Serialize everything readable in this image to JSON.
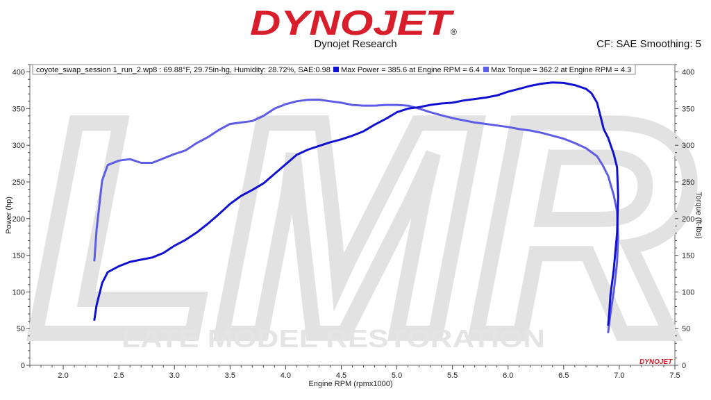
{
  "header": {
    "logo_text": "DYNOJET",
    "logo_mark": "®",
    "company": "Dynojet Research",
    "cf_info": "CF: SAE Smoothing: 5",
    "watermark_text": "LATE MODEL RESTORATION",
    "watermark_monogram": "LMR",
    "corner_logo": "DYNOJET"
  },
  "colors": {
    "logo_red": "#d81e2a",
    "power": "#1010d0",
    "torque": "#5c5ce6",
    "watermark": "#e4e4e4"
  },
  "chart_data": {
    "type": "line",
    "legend": {
      "placement": "top",
      "run_info": "coyote_swap_session 1_run_2.wp8  : 69.88°F, 29.75in-hg, Humidity: 28.72%, SAE:0.98",
      "entries": [
        "Max Power = 385.6 at Engine RPM = 6.4",
        "Max Torque = 362.2 at Engine RPM = 4.3"
      ]
    },
    "xlabel": "Engine RPM (rpmx1000)",
    "ylabel_left": "Power (hp)",
    "ylabel_right": "Torque (ft-lbs)",
    "xlim": [
      1.7,
      7.5
    ],
    "ylim": [
      0,
      410
    ],
    "x_ticks": [
      "2.0",
      "2.5",
      "3.0",
      "3.5",
      "4.0",
      "4.5",
      "5.0",
      "5.5",
      "6.0",
      "6.5",
      "7.0",
      "7.5"
    ],
    "y_ticks": [
      "0",
      "50",
      "100",
      "150",
      "200",
      "250",
      "300",
      "350",
      "400"
    ],
    "grid": false,
    "series": [
      {
        "name": "Power",
        "points": [
          [
            2.28,
            62
          ],
          [
            2.3,
            82
          ],
          [
            2.35,
            112
          ],
          [
            2.4,
            127
          ],
          [
            2.5,
            135
          ],
          [
            2.6,
            141
          ],
          [
            2.7,
            144
          ],
          [
            2.8,
            147
          ],
          [
            2.9,
            153
          ],
          [
            3.0,
            163
          ],
          [
            3.1,
            171
          ],
          [
            3.2,
            181
          ],
          [
            3.3,
            193
          ],
          [
            3.4,
            206
          ],
          [
            3.5,
            220
          ],
          [
            3.6,
            231
          ],
          [
            3.7,
            239
          ],
          [
            3.8,
            248
          ],
          [
            3.9,
            261
          ],
          [
            4.0,
            274
          ],
          [
            4.1,
            287
          ],
          [
            4.2,
            294
          ],
          [
            4.3,
            299
          ],
          [
            4.4,
            304
          ],
          [
            4.5,
            308
          ],
          [
            4.6,
            313
          ],
          [
            4.7,
            319
          ],
          [
            4.8,
            328
          ],
          [
            4.9,
            336
          ],
          [
            5.0,
            345
          ],
          [
            5.1,
            350
          ],
          [
            5.2,
            352
          ],
          [
            5.3,
            355
          ],
          [
            5.4,
            357
          ],
          [
            5.5,
            358
          ],
          [
            5.6,
            361
          ],
          [
            5.7,
            363
          ],
          [
            5.8,
            365
          ],
          [
            5.9,
            368
          ],
          [
            6.0,
            373
          ],
          [
            6.1,
            377
          ],
          [
            6.2,
            381
          ],
          [
            6.3,
            384
          ],
          [
            6.4,
            385.6
          ],
          [
            6.5,
            385
          ],
          [
            6.6,
            382
          ],
          [
            6.7,
            377
          ],
          [
            6.75,
            371
          ],
          [
            6.8,
            358
          ],
          [
            6.83,
            340
          ],
          [
            6.86,
            322
          ],
          [
            6.9,
            310
          ],
          [
            6.95,
            288
          ],
          [
            6.98,
            270
          ],
          [
            6.99,
            230
          ],
          [
            6.98,
            180
          ],
          [
            6.95,
            130
          ],
          [
            6.92,
            95
          ],
          [
            6.91,
            72
          ],
          [
            6.9,
            55
          ]
        ]
      },
      {
        "name": "Torque",
        "points": [
          [
            2.28,
            143
          ],
          [
            2.3,
            185
          ],
          [
            2.35,
            252
          ],
          [
            2.4,
            273
          ],
          [
            2.5,
            279
          ],
          [
            2.6,
            281
          ],
          [
            2.7,
            276
          ],
          [
            2.8,
            276
          ],
          [
            2.9,
            282
          ],
          [
            3.0,
            288
          ],
          [
            3.1,
            293
          ],
          [
            3.2,
            303
          ],
          [
            3.3,
            311
          ],
          [
            3.4,
            321
          ],
          [
            3.5,
            329
          ],
          [
            3.6,
            331
          ],
          [
            3.7,
            333
          ],
          [
            3.8,
            340
          ],
          [
            3.9,
            350
          ],
          [
            4.0,
            356
          ],
          [
            4.1,
            360
          ],
          [
            4.2,
            362
          ],
          [
            4.3,
            362.2
          ],
          [
            4.4,
            360
          ],
          [
            4.5,
            358
          ],
          [
            4.6,
            355
          ],
          [
            4.7,
            354
          ],
          [
            4.8,
            354
          ],
          [
            4.9,
            355
          ],
          [
            5.0,
            355
          ],
          [
            5.1,
            354
          ],
          [
            5.2,
            350
          ],
          [
            5.3,
            345
          ],
          [
            5.4,
            341
          ],
          [
            5.5,
            337
          ],
          [
            5.6,
            334
          ],
          [
            5.7,
            331
          ],
          [
            5.8,
            329
          ],
          [
            5.9,
            327
          ],
          [
            6.0,
            325
          ],
          [
            6.1,
            322
          ],
          [
            6.2,
            320
          ],
          [
            6.3,
            317
          ],
          [
            6.4,
            313
          ],
          [
            6.5,
            309
          ],
          [
            6.6,
            303
          ],
          [
            6.7,
            296
          ],
          [
            6.8,
            285
          ],
          [
            6.85,
            273
          ],
          [
            6.9,
            258
          ],
          [
            6.95,
            232
          ],
          [
            6.98,
            210
          ],
          [
            6.99,
            175
          ],
          [
            6.98,
            140
          ],
          [
            6.95,
            100
          ],
          [
            6.92,
            70
          ],
          [
            6.9,
            45
          ]
        ]
      }
    ]
  }
}
